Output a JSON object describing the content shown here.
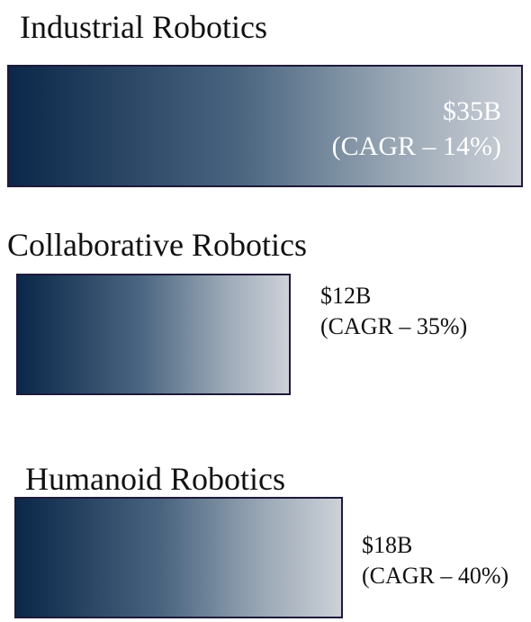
{
  "items": [
    {
      "title": "Industrial Robotics",
      "value": "$35B",
      "cagr": "(CAGR – 14%)"
    },
    {
      "title": "Collaborative Robotics",
      "value": "$12B",
      "cagr": "(CAGR – 35%)"
    },
    {
      "title": "Humanoid Robotics",
      "value": "$18B",
      "cagr": "(CAGR – 40%)"
    }
  ]
}
